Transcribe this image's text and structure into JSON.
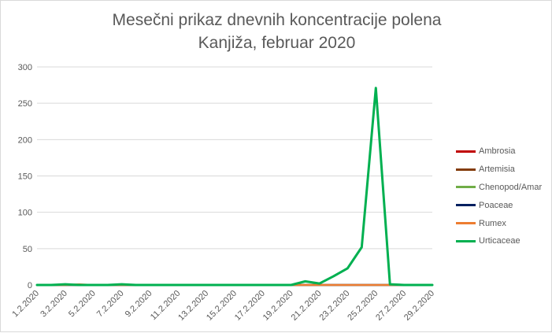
{
  "chart_data": {
    "type": "line",
    "title": "Mesečni prikaz dnevnih koncentracije polena",
    "subtitle": "Kanjiža, februar 2020",
    "xlabel": "",
    "ylabel": "",
    "ylim": [
      0,
      300
    ],
    "yticks": [
      "0",
      "50",
      "100",
      "150",
      "200",
      "250",
      "300"
    ],
    "grid": true,
    "legend_position": "right",
    "x": [
      "1.2.2020",
      "2.2.2020",
      "3.2.2020",
      "4.2.2020",
      "5.2.2020",
      "6.2.2020",
      "7.2.2020",
      "8.2.2020",
      "9.2.2020",
      "10.2.2020",
      "11.2.2020",
      "12.2.2020",
      "13.2.2020",
      "14.2.2020",
      "15.2.2020",
      "16.2.2020",
      "17.2.2020",
      "18.2.2020",
      "19.2.2020",
      "20.2.2020",
      "21.2.2020",
      "22.2.2020",
      "23.2.2020",
      "24.2.2020",
      "25.2.2020",
      "26.2.2020",
      "27.2.2020",
      "28.2.2020",
      "29.2.2020"
    ],
    "x_tick_labels": [
      "1.2.2020",
      "3.2.2020",
      "5.2.2020",
      "7.2.2020",
      "9.2.2020",
      "11.2.2020",
      "13.2.2020",
      "15.2.2020",
      "17.2.2020",
      "19.2.2020",
      "21.2.2020",
      "23.2.2020",
      "25.2.2020",
      "27.2.2020",
      "29.2.2020"
    ],
    "series": [
      {
        "name": "Ambrosia",
        "color": "#c00000",
        "values": [
          0,
          0,
          0,
          0,
          0,
          0,
          0,
          0,
          0,
          0,
          0,
          0,
          0,
          0,
          0,
          0,
          0,
          0,
          0,
          0,
          0,
          0,
          0,
          0,
          0,
          0,
          0,
          0,
          0
        ]
      },
      {
        "name": "Artemisia",
        "color": "#843c0c",
        "values": [
          0,
          0,
          0,
          0,
          0,
          0,
          0,
          0,
          0,
          0,
          0,
          0,
          0,
          0,
          0,
          0,
          0,
          0,
          0,
          0,
          0,
          0,
          0,
          0,
          0,
          0,
          0,
          0,
          0
        ]
      },
      {
        "name": "Chenopod/Amar",
        "color": "#70ad47",
        "values": [
          0,
          0,
          0,
          0,
          0,
          0,
          0,
          0,
          0,
          0,
          0,
          0,
          0,
          0,
          0,
          0,
          0,
          0,
          0,
          0,
          0,
          0,
          0,
          0,
          0,
          0,
          0,
          0,
          0
        ]
      },
      {
        "name": "Poaceae",
        "color": "#002060",
        "values": [
          0,
          0,
          0,
          0,
          0,
          0,
          0,
          0,
          0,
          0,
          0,
          0,
          0,
          0,
          0,
          0,
          0,
          0,
          0,
          0,
          0,
          0,
          0,
          0,
          0,
          0,
          0,
          0,
          0
        ]
      },
      {
        "name": "Rumex",
        "color": "#ed7d31",
        "values": [
          0,
          0,
          0,
          1,
          0,
          0,
          0,
          0,
          0,
          0,
          0,
          0,
          0,
          0,
          0,
          0,
          0,
          0,
          0,
          0,
          0,
          0,
          0,
          0,
          0,
          0,
          0,
          0,
          0
        ]
      },
      {
        "name": "Urticaceae",
        "color": "#00b050",
        "values": [
          0,
          0,
          1,
          0,
          0,
          0,
          1,
          0,
          0,
          0,
          0,
          0,
          0,
          0,
          0,
          0,
          0,
          0,
          0,
          5,
          2,
          12,
          23,
          52,
          271,
          1,
          0,
          0,
          0
        ]
      }
    ]
  }
}
